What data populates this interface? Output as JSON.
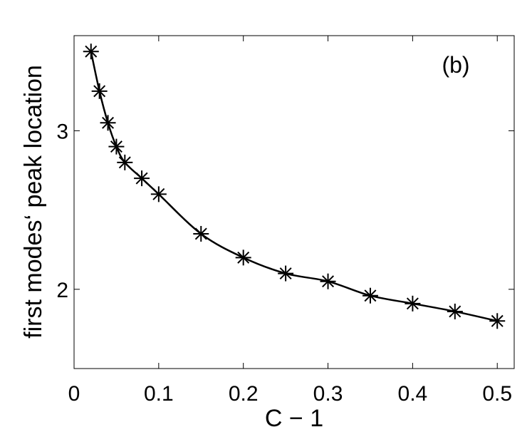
{
  "chart_data": {
    "type": "line",
    "panel_label": "(b)",
    "xlabel": "C − 1",
    "ylabel": "first modes‘ peak location",
    "xlim": [
      0,
      0.52
    ],
    "ylim": [
      1.5,
      3.6
    ],
    "xticks": [
      0,
      0.1,
      0.2,
      0.3,
      0.4,
      0.5
    ],
    "xtick_labels": [
      "0",
      "0.1",
      "0.2",
      "0.3",
      "0.4",
      "0.5"
    ],
    "yticks": [
      2,
      3
    ],
    "ytick_labels": [
      "2",
      "3"
    ],
    "grid": false,
    "legend": "none",
    "marker": "asterisk",
    "line_color": "#000000",
    "series": [
      {
        "x": [
          0.02,
          0.03,
          0.04,
          0.05,
          0.06,
          0.08,
          0.1,
          0.15,
          0.2,
          0.25,
          0.3,
          0.35,
          0.4,
          0.45,
          0.5
        ],
        "y": [
          3.5,
          3.25,
          3.05,
          2.9,
          2.8,
          2.7,
          2.6,
          2.35,
          2.2,
          2.1,
          2.05,
          1.96,
          1.91,
          1.86,
          1.8
        ]
      }
    ]
  }
}
